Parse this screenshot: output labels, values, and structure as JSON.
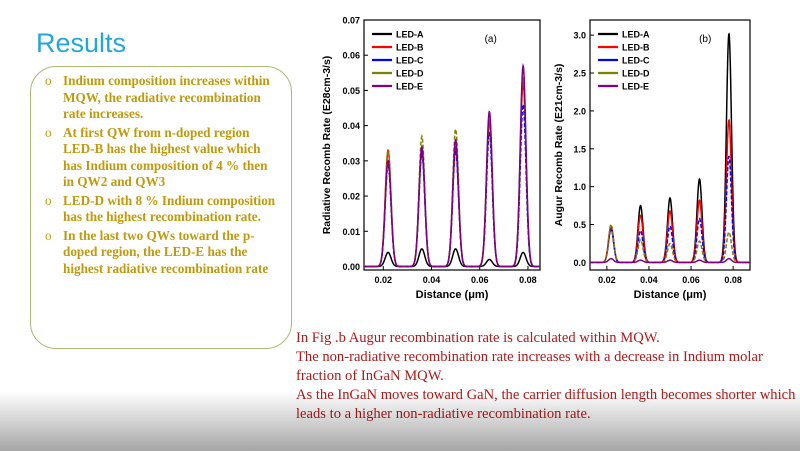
{
  "slide": {
    "title": "Results",
    "bullets": [
      "Indium composition increases within MQW, the radiative recombination rate increases.",
      "At first QW from n-doped region LED-B has the highest value which has Indium composition of 4 % then in QW2 and QW3",
      "LED-D with 8 % Indium composition has the highest recombination rate.",
      "In the last two QWs toward the p-doped region, the LED-E has the highest radiative recombination rate"
    ],
    "bullet_marker": "o",
    "caption": [
      "In Fig .b Augur recombination rate is calculated within MQW.",
      "The non-radiative recombination rate increases with a decrease in Indium molar fraction of InGaN MQW.",
      "As the InGaN moves toward GaN, the carrier diffusion length becomes shorter which leads to a higher non-radiative recombination rate."
    ],
    "colors": {
      "title": "#22a8d6",
      "bullets": "#c09a0c",
      "caption": "#b01a1a",
      "border": "#a7bc72"
    }
  },
  "chart_data": [
    {
      "type": "line",
      "panel_label": "(a)",
      "xlabel": "Distance (μm)",
      "ylabel": "Radiative Recomb Rate (E28cm-3/s)",
      "xlim": [
        0.012,
        0.085
      ],
      "ylim": [
        -0.001,
        0.07
      ],
      "xticks": [
        "0.02",
        "0.04",
        "0.06",
        "0.08"
      ],
      "yticks": [
        "0.00",
        "0.01",
        "0.02",
        "0.03",
        "0.04",
        "0.05",
        "0.06",
        "0.07"
      ],
      "peak_positions": [
        0.022,
        0.036,
        0.05,
        0.064,
        0.078
      ],
      "series": [
        {
          "name": "LED-A",
          "color": "#000000",
          "peaks": [
            0.004,
            0.005,
            0.005,
            0.002,
            0.004
          ]
        },
        {
          "name": "LED-B",
          "color": "#ff0000",
          "peaks": [
            0.033,
            0.033,
            0.034,
            0.041,
            0.052
          ]
        },
        {
          "name": "LED-C",
          "color": "#0000ff",
          "peaks": [
            0.029,
            0.032,
            0.033,
            0.038,
            0.046
          ]
        },
        {
          "name": "LED-D",
          "color": "#808000",
          "peaks": [
            0.033,
            0.037,
            0.039,
            0.043,
            0.054
          ]
        },
        {
          "name": "LED-E",
          "color": "#800080",
          "peaks": [
            0.03,
            0.034,
            0.036,
            0.044,
            0.057
          ]
        }
      ]
    },
    {
      "type": "line",
      "panel_label": "(b)",
      "xlabel": "Distance (μm)",
      "ylabel": "Augur Recomb Rate (E21cm-3/s)",
      "xlim": [
        0.012,
        0.088
      ],
      "ylim": [
        -0.1,
        3.2
      ],
      "xticks": [
        "0.02",
        "0.04",
        "0.06",
        "0.08"
      ],
      "yticks": [
        "0.0",
        "0.5",
        "1.0",
        "1.5",
        "2.0",
        "2.5",
        "3.0"
      ],
      "peak_positions": [
        0.022,
        0.036,
        0.05,
        0.064,
        0.078
      ],
      "series": [
        {
          "name": "LED-A",
          "color": "#000000",
          "peaks": [
            0.45,
            0.75,
            0.85,
            1.1,
            3.02
          ]
        },
        {
          "name": "LED-B",
          "color": "#ff0000",
          "peaks": [
            0.48,
            0.62,
            0.68,
            0.82,
            1.88
          ]
        },
        {
          "name": "LED-C",
          "color": "#0000ff",
          "peaks": [
            0.45,
            0.42,
            0.48,
            0.58,
            1.4
          ]
        },
        {
          "name": "LED-D",
          "color": "#808000",
          "peaks": [
            0.5,
            0.3,
            0.25,
            0.28,
            0.4
          ]
        },
        {
          "name": "LED-E",
          "color": "#800080",
          "peaks": [
            0.05,
            0.03,
            0.03,
            0.03,
            0.05
          ]
        }
      ]
    }
  ]
}
